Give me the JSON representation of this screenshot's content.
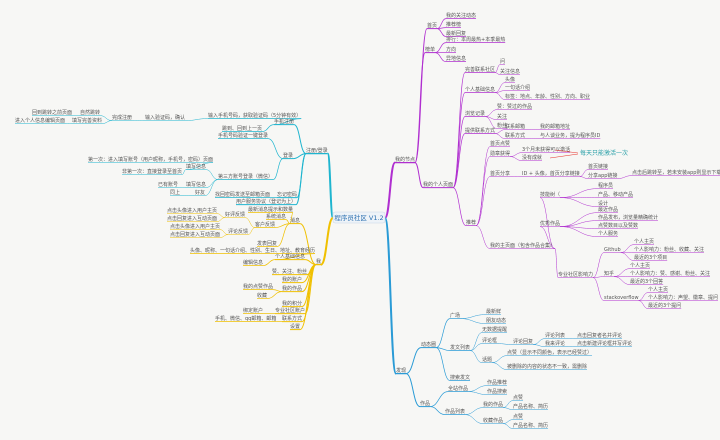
{
  "colors": {
    "purple": "#b02fd0",
    "cyan": "#1fb5cf",
    "yellow": "#f0c000",
    "blue": "#2a9bd6",
    "red": "#e8302a",
    "note": "#2aa0a8"
  },
  "mindmap": {
    "root": "程序员社区 V1.2",
    "annotation": "每天只能激活一次",
    "branches": [
      {
        "text": "我的节点",
        "color": "purple",
        "children": [
          {
            "text": "首页",
            "children": [
              {
                "text": "我的关注动态"
              },
              {
                "text": "推荐榜"
              },
              {
                "text": "最新回复"
              }
            ]
          },
          {
            "text": "榜单",
            "children": [
              {
                "text": "排行：本周最热+本季最热"
              },
              {
                "text": "方向"
              },
              {
                "text": "异地信息"
              }
            ]
          },
          {
            "text": "我的个人页面",
            "children": [
              {
                "text": "完善联系社区",
                "children": [
                  {
                    "text": "问"
                  },
                  {
                    "text": "关注信息"
                  }
                ]
              },
              {
                "text": "个人基础信息",
                "children": [
                  {
                    "text": "头像"
                  },
                  {
                    "text": "一句话介绍"
                  },
                  {
                    "text": "标签：地点、年龄、性别、方向、职业"
                  }
                ]
              },
              {
                "text": "浏览记录",
                "children": [
                  {
                    "text": "赞：赞过的作品"
                  },
                  {
                    "text": "关注"
                  },
                  {
                    "text": "粉丝"
                  }
                ]
              },
              {
                "text": "提供联系方式",
                "children": [
                  {
                    "text": "联系邮箱",
                    "children": [
                      {
                        "text": "我的邮箱地址"
                      }
                    ]
                  },
                  {
                    "text": "联系方式",
                    "children": [
                      {
                        "text": "与人谈业务，提为程序员ID"
                      }
                    ]
                  }
                ]
              },
              {
                "text": "推荐",
                "children": [
                  {
                    "text": "首页点赞"
                  },
                  {
                    "text": "勋章获得",
                    "children": [
                      {
                        "text": "3个月未获得可以激活"
                      },
                      {
                        "text": "没有成就"
                      }
                    ]
                  },
                  {
                    "text": "首页分享",
                    "highlight": "red",
                    "children": [
                      {
                        "text": "ID + 头像，首页分享链接",
                        "highlight": "red",
                        "children": [
                          {
                            "text": "首页链接",
                            "highlight": "red"
                          },
                          {
                            "text": "分享app链接",
                            "highlight": "red",
                            "children": [
                              {
                                "text": "点击后跳转至，若未安装app则显示下载android apk",
                                "highlight": "red"
                              }
                            ]
                          }
                        ]
                      }
                    ]
                  },
                  {
                    "text": "我的主页面（包含作品合集）",
                    "children": [
                      {
                        "text": "技能树（",
                        "children": [
                          {
                            "text": "程序员"
                          },
                          {
                            "text": "产品、移动产品"
                          },
                          {
                            "text": "设计"
                          }
                        ]
                      },
                      {
                        "text": "优秀作品",
                        "children": [
                          {
                            "text": "最近作品"
                          },
                          {
                            "text": "作品发布，浏览量精确统计"
                          },
                          {
                            "text": "点赞数目以及赞数"
                          },
                          {
                            "text": "个人服务"
                          }
                        ]
                      },
                      {
                        "text": "专业社区影响力",
                        "children": [
                          {
                            "text": "Github",
                            "children": [
                              {
                                "text": "个人主页"
                              },
                              {
                                "text": "个人影响力：粉丝、收藏、关注"
                              },
                              {
                                "text": "最近的3个项目"
                              }
                            ]
                          },
                          {
                            "text": "知乎",
                            "children": [
                              {
                                "text": "个人主页"
                              },
                              {
                                "text": "个人影响力：赞、感谢、粉丝、关注"
                              },
                              {
                                "text": "最近的3个回答"
                              }
                            ]
                          },
                          {
                            "text": "stackoverflow",
                            "children": [
                              {
                                "text": "个人主页"
                              },
                              {
                                "text": "个人影响力：声望、徽章、提问"
                              },
                              {
                                "text": "最近的3个提问"
                              }
                            ]
                          }
                        ]
                      }
                    ]
                  }
                ]
              }
            ]
          }
        ]
      },
      {
        "text": "注册/登录",
        "color": "cyan",
        "children": [
          {
            "text": "手机注册",
            "children": [
              {
                "text": "输入手机号码，获取验证码（5分钟有效）",
                "children": [
                  {
                    "text": "输入验证码，确认",
                    "children": [
                      {
                        "text": "完成注册",
                        "children": [
                          {
                            "text": "自然跳转",
                            "children": [
                              {
                                "text": "回到跳转之前页面"
                              }
                            ]
                          },
                          {
                            "text": "填写完善资料",
                            "children": [
                              {
                                "text": "进入个人信息编辑页面"
                              }
                            ]
                          }
                        ]
                      }
                    ]
                  }
                ]
              },
              {
                "text": "跳到、回到上一页"
              }
            ]
          },
          {
            "text": "登录",
            "children": [
              {
                "text": "手机号码验证一键登录"
              },
              {
                "text": "第三方账号登录（微信）",
                "children": [
                  {
                    "text": "填写信息",
                    "children": [
                      {
                        "text": "第一次：进入填写账号（用户昵称，手机号，密码）页面"
                      },
                      {
                        "text": "非第一次：直接登录至首页"
                      }
                    ]
                  },
                  {
                    "text": "填写信息",
                    "children": [
                      {
                        "text": "已有账号"
                      }
                    ]
                  },
                  {
                    "text": "好友",
                    "children": [
                      {
                        "text": "同上"
                      }
                    ]
                  }
                ]
              }
            ]
          },
          {
            "text": "忘记密码",
            "children": [
              {
                "text": "找回密码发送至邮箱页面"
              }
            ]
          },
          {
            "text": "用户服务协议（登记为上）"
          }
        ]
      },
      {
        "text": "我",
        "color": "yellow",
        "children": [
          {
            "text": "消息",
            "children": [
              {
                "text": "最新消息提示和数量"
              },
              {
                "text": "系统消息"
              },
              {
                "text": "客户反馈",
                "children": [
                  {
                    "text": "好评反馈",
                    "children": [
                      {
                        "text": "点击头像进入用户主页"
                      },
                      {
                        "text": "点击回复进入互动页面"
                      }
                    ]
                  },
                  {
                    "text": "评论反馈",
                    "children": [
                      {
                        "text": "点击头像进入用户主页"
                      },
                      {
                        "text": "点击回复进入互动页面"
                      }
                    ]
                  }
                ]
              },
              {
                "text": "发表回复"
              }
            ]
          },
          {
            "text": "个人基础信息",
            "children": [
              {
                "text": "头像、昵称、一句话介绍、性别、生日、地址、教育经历"
              },
              {
                "text": "编辑信息"
              }
            ]
          },
          {
            "text": "赞、关注、粉丝"
          },
          {
            "text": "我的账户"
          },
          {
            "text": "我的作品",
            "children": [
              {
                "text": "我的点赞作品"
              },
              {
                "text": "收藏"
              }
            ]
          },
          {
            "text": "我的积分"
          },
          {
            "text": "专业社区账户",
            "highlight": "red",
            "children": [
              {
                "text": "绑定账户",
                "highlight": "red"
              }
            ]
          },
          {
            "text": "联系方式",
            "children": [
              {
                "text": "手机、微信、qq邮箱、邮箱"
              }
            ]
          },
          {
            "text": "设置"
          }
        ]
      },
      {
        "text": "发现",
        "color": "blue",
        "children": [
          {
            "text": "动态圈",
            "children": [
              {
                "text": "广场",
                "children": [
                  {
                    "text": "最新鲜"
                  },
                  {
                    "text": "朋友动态"
                  }
                ]
              },
              {
                "text": "发文列表",
                "children": [
                  {
                    "text": "无数据提醒"
                  },
                  {
                    "text": "评论框",
                    "children": [
                      {
                        "text": "评论回复",
                        "children": [
                          {
                            "text": "评论列表",
                            "children": [
                              {
                                "text": "点击回复者名并评论"
                              }
                            ]
                          },
                          {
                            "text": "我来评论",
                            "children": [
                              {
                                "text": "点击新建评论框并写评论"
                              }
                            ]
                          }
                        ]
                      }
                    ]
                  },
                  {
                    "text": "话题",
                    "children": [
                      {
                        "text": "点赞（显示不同颜色，表示已经赞过）"
                      },
                      {
                        "text": "被删除的内容的状态不一致，需删除"
                      }
                    ]
                  }
                ]
              },
              {
                "text": "搜索发文"
              }
            ]
          },
          {
            "text": "作品",
            "children": [
              {
                "text": "全站作品",
                "children": [
                  {
                    "text": "作品推荐"
                  },
                  {
                    "text": "作品搜索"
                  }
                ]
              },
              {
                "text": "作品列表",
                "children": [
                  {
                    "text": "我的作品",
                    "children": [
                      {
                        "text": "点赞"
                      },
                      {
                        "text": "产品名称、简历"
                      }
                    ]
                  },
                  {
                    "text": "收藏作品",
                    "children": [
                      {
                        "text": "点赞"
                      },
                      {
                        "text": "产品名称、简历"
                      }
                    ]
                  }
                ]
              }
            ]
          }
        ]
      }
    ]
  }
}
